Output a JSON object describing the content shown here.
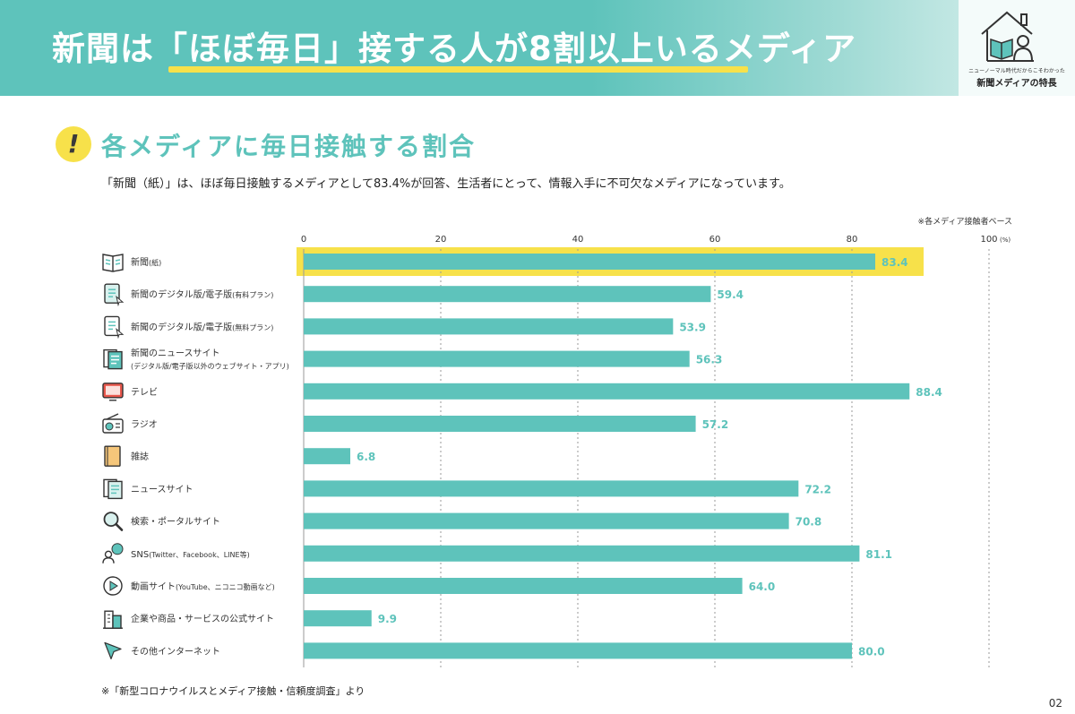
{
  "header": {
    "title": "新聞は「ほぼ毎日」接する人が8割以上いるメディア",
    "brand_subtitle": "ニューノーマル時代だからこそわかった",
    "brand_title": "新聞メディアの特長"
  },
  "section": {
    "title": "各メディアに毎日接触する割合",
    "icon": "exclamation-icon"
  },
  "description": "「新聞（紙）」は、ほぼ毎日接触するメディアとして83.4%が回答、生活者にとって、情報入手に不可欠なメディアになっています。",
  "base_note": "※各メディア接触者ベース",
  "footnote": "※「新型コロナウイルスとメディア接触・信頼度調査」より",
  "page_number": "02",
  "colors": {
    "bar": "#5ec3bb",
    "value_text": "#5ec3bb",
    "highlight": "#f7e14a",
    "header_bg": "#5ec3bb"
  },
  "chart_data": {
    "type": "bar",
    "orientation": "horizontal",
    "xlim": [
      0,
      100
    ],
    "unit": "(%)",
    "ticks": [
      0,
      20,
      40,
      60,
      80,
      100
    ],
    "grid": "dashed vertical",
    "highlighted_category_index": 0,
    "categories": [
      {
        "label": "新聞",
        "sub": "(紙)",
        "icon": "newspaper-icon",
        "value": 83.4
      },
      {
        "label": "新聞のデジタル版/電子版",
        "sub": "(有料プラン)",
        "icon": "digital-paid-icon",
        "value": 59.4
      },
      {
        "label": "新聞のデジタル版/電子版",
        "sub": "(無料プラン)",
        "icon": "digital-free-icon",
        "value": 53.9
      },
      {
        "label": "新聞のニュースサイト",
        "label2": "(デジタル版/電子版以外のウェブサイト・アプリ)",
        "icon": "news-site-doc-icon",
        "value": 56.3
      },
      {
        "label": "テレビ",
        "icon": "tv-icon",
        "value": 88.4
      },
      {
        "label": "ラジオ",
        "icon": "radio-icon",
        "value": 57.2
      },
      {
        "label": "雑誌",
        "icon": "magazine-icon",
        "value": 6.8
      },
      {
        "label": "ニュースサイト",
        "icon": "news-site-icon",
        "value": 72.2
      },
      {
        "label": "検索・ポータルサイト",
        "icon": "search-icon",
        "value": 70.8
      },
      {
        "label": "SNS",
        "sub": "(Twitter、Facebook、LINE等)",
        "icon": "sns-icon",
        "value": 81.1
      },
      {
        "label": "動画サイト",
        "sub": "(YouTube、ニコニコ動画など)",
        "icon": "play-icon",
        "value": 64.0
      },
      {
        "label": "企業や商品・サービスの公式サイト",
        "icon": "building-icon",
        "value": 9.9
      },
      {
        "label": "その他インターネット",
        "icon": "cursor-icon",
        "value": 80.0
      }
    ]
  }
}
